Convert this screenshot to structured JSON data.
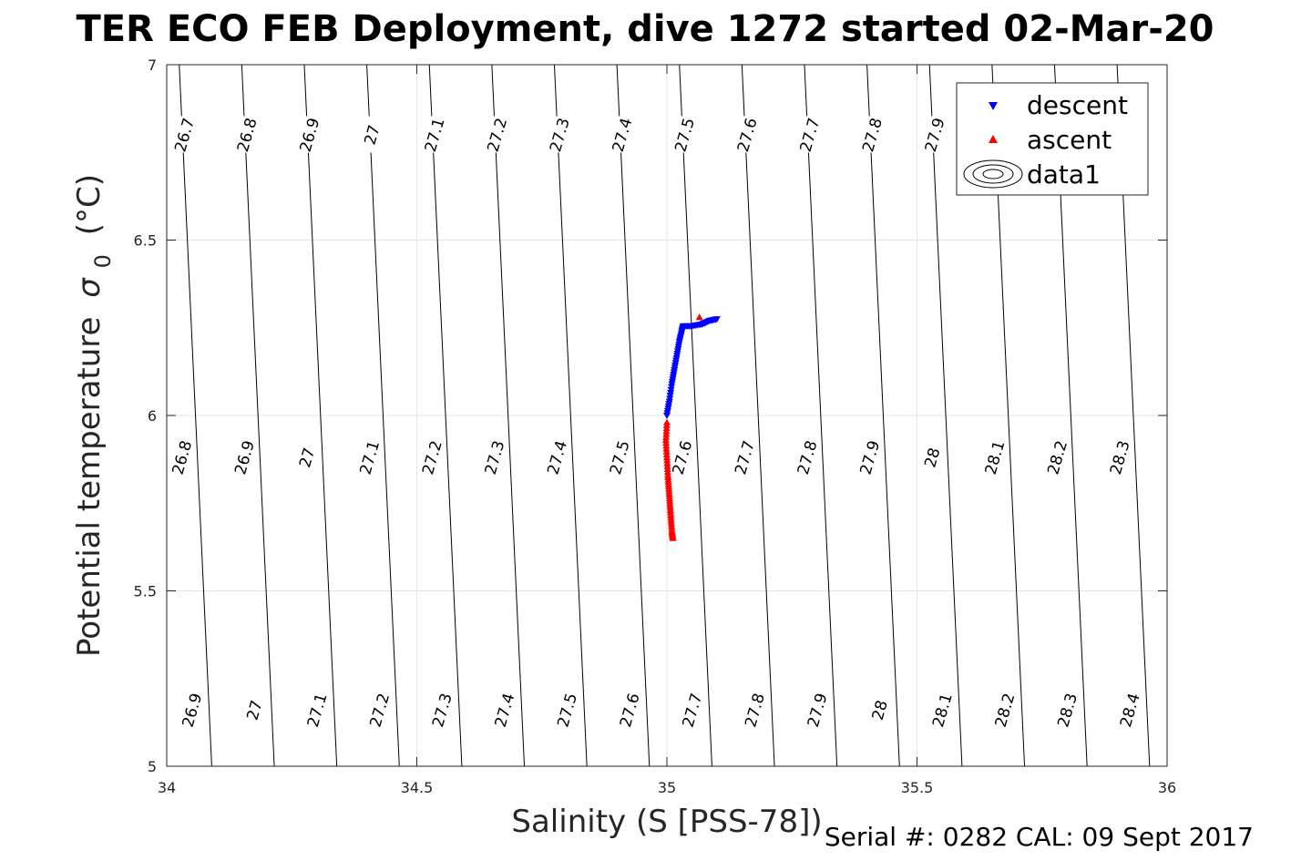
{
  "chart_data": {
    "type": "scatter",
    "title": "TER ECO FEB Deployment, dive 1272 started 02-Mar-20",
    "xlabel": "Salinity (S [PSS-78])",
    "ylabel": "Potential temperature",
    "ylabel_symbol": "σ",
    "ylabel_subscript": "0",
    "ylabel_units": "(°C)",
    "xlim": [
      34,
      36
    ],
    "ylim": [
      5,
      7
    ],
    "xticks": [
      "34",
      "34.5",
      "35",
      "35.5",
      "36"
    ],
    "xtick_values": [
      34,
      34.5,
      35,
      35.5,
      36
    ],
    "yticks": [
      "5",
      "5.5",
      "6",
      "6.5",
      "7"
    ],
    "ytick_values": [
      5,
      5.5,
      6,
      6.5,
      7
    ],
    "grid": true,
    "legend_position": "top-right",
    "legend": [
      "descent",
      "ascent",
      "data1"
    ],
    "series": [
      {
        "name": "descent",
        "marker": "triangle-down",
        "color": "#0000ff",
        "points": [
          [
            35.0,
            6.0
          ],
          [
            35.005,
            6.04
          ],
          [
            35.01,
            6.09
          ],
          [
            35.015,
            6.13
          ],
          [
            35.02,
            6.17
          ],
          [
            35.025,
            6.21
          ],
          [
            35.03,
            6.24
          ],
          [
            35.033,
            6.255
          ],
          [
            35.05,
            6.255
          ],
          [
            35.07,
            6.26
          ],
          [
            35.085,
            6.27
          ],
          [
            35.1,
            6.275
          ]
        ]
      },
      {
        "name": "ascent",
        "marker": "triangle-up",
        "color": "#ff0000",
        "points": [
          [
            35.0,
            5.98
          ],
          [
            34.998,
            5.93
          ],
          [
            35.0,
            5.88
          ],
          [
            35.002,
            5.83
          ],
          [
            35.004,
            5.79
          ],
          [
            35.006,
            5.75
          ],
          [
            35.008,
            5.71
          ],
          [
            35.01,
            5.67
          ],
          [
            35.012,
            5.65
          ],
          [
            35.065,
            6.28
          ]
        ]
      }
    ],
    "contours": {
      "name": "data1",
      "color": "#000000",
      "line_params": [
        [
          26.7,
          34.09,
          34.025
        ],
        [
          26.8,
          34.215,
          34.15
        ],
        [
          26.9,
          34.34,
          34.275
        ],
        [
          27,
          34.465,
          34.4
        ],
        [
          27.1,
          34.59,
          34.525
        ],
        [
          27.2,
          34.715,
          34.65
        ],
        [
          27.3,
          34.84,
          34.775
        ],
        [
          27.4,
          34.965,
          34.9
        ],
        [
          27.5,
          35.09,
          35.025
        ],
        [
          27.6,
          35.215,
          35.15
        ],
        [
          27.7,
          35.34,
          35.275
        ],
        [
          27.8,
          35.465,
          35.4
        ],
        [
          27.9,
          35.59,
          35.525
        ],
        [
          28,
          35.715,
          35.65
        ],
        [
          28.1,
          35.84,
          35.775
        ],
        [
          28.2,
          35.965,
          35.9
        ],
        [
          28.3,
          36.09,
          36.025
        ],
        [
          28.4,
          36.215,
          36.15
        ],
        [
          28.5,
          36.34,
          36.275
        ],
        [
          26.6,
          33.965,
          33.9
        ],
        [
          26.5,
          33.84,
          33.775
        ]
      ],
      "labels": [
        {
          "text": "26.7",
          "s": 34.035,
          "t": 6.8
        },
        {
          "text": "26.8",
          "s": 34.16,
          "t": 6.8
        },
        {
          "text": "26.9",
          "s": 34.285,
          "t": 6.8
        },
        {
          "text": "27",
          "s": 34.41,
          "t": 6.8
        },
        {
          "text": "27.1",
          "s": 34.535,
          "t": 6.8
        },
        {
          "text": "27.2",
          "s": 34.66,
          "t": 6.8
        },
        {
          "text": "27.3",
          "s": 34.785,
          "t": 6.8
        },
        {
          "text": "27.4",
          "s": 34.91,
          "t": 6.8
        },
        {
          "text": "27.5",
          "s": 35.035,
          "t": 6.8
        },
        {
          "text": "27.6",
          "s": 35.16,
          "t": 6.8
        },
        {
          "text": "27.7",
          "s": 35.285,
          "t": 6.8
        },
        {
          "text": "27.8",
          "s": 35.41,
          "t": 6.8
        },
        {
          "text": "27.9",
          "s": 35.535,
          "t": 6.8
        },
        {
          "text": "26.8",
          "s": 34.03,
          "t": 5.88
        },
        {
          "text": "26.9",
          "s": 34.155,
          "t": 5.88
        },
        {
          "text": "27",
          "s": 34.28,
          "t": 5.88
        },
        {
          "text": "27.1",
          "s": 34.405,
          "t": 5.88
        },
        {
          "text": "27.2",
          "s": 34.53,
          "t": 5.88
        },
        {
          "text": "27.3",
          "s": 34.655,
          "t": 5.88
        },
        {
          "text": "27.4",
          "s": 34.78,
          "t": 5.88
        },
        {
          "text": "27.5",
          "s": 34.905,
          "t": 5.88
        },
        {
          "text": "27.6",
          "s": 35.03,
          "t": 5.88
        },
        {
          "text": "27.7",
          "s": 35.155,
          "t": 5.88
        },
        {
          "text": "27.8",
          "s": 35.28,
          "t": 5.88
        },
        {
          "text": "27.9",
          "s": 35.405,
          "t": 5.88
        },
        {
          "text": "28",
          "s": 35.53,
          "t": 5.88
        },
        {
          "text": "28.1",
          "s": 35.655,
          "t": 5.88
        },
        {
          "text": "28.2",
          "s": 35.78,
          "t": 5.88
        },
        {
          "text": "28.3",
          "s": 35.905,
          "t": 5.88
        },
        {
          "text": "26.9",
          "s": 34.05,
          "t": 5.16
        },
        {
          "text": "27",
          "s": 34.175,
          "t": 5.16
        },
        {
          "text": "27.1",
          "s": 34.3,
          "t": 5.16
        },
        {
          "text": "27.2",
          "s": 34.425,
          "t": 5.16
        },
        {
          "text": "27.3",
          "s": 34.55,
          "t": 5.16
        },
        {
          "text": "27.4",
          "s": 34.675,
          "t": 5.16
        },
        {
          "text": "27.5",
          "s": 34.8,
          "t": 5.16
        },
        {
          "text": "27.6",
          "s": 34.925,
          "t": 5.16
        },
        {
          "text": "27.7",
          "s": 35.05,
          "t": 5.16
        },
        {
          "text": "27.8",
          "s": 35.175,
          "t": 5.16
        },
        {
          "text": "27.9",
          "s": 35.3,
          "t": 5.16
        },
        {
          "text": "28",
          "s": 35.425,
          "t": 5.16
        },
        {
          "text": "28.1",
          "s": 35.55,
          "t": 5.16
        },
        {
          "text": "28.2",
          "s": 35.675,
          "t": 5.16
        },
        {
          "text": "28.3",
          "s": 35.8,
          "t": 5.16
        },
        {
          "text": "28.4",
          "s": 35.925,
          "t": 5.16
        }
      ]
    }
  },
  "footer": {
    "serial_text": "Serial #: 0282  CAL: 09 Sept 2017"
  },
  "colors": {
    "descent": "#0000ff",
    "ascent": "#ff0000",
    "grid": "#e5e5e5",
    "axis": "#262626"
  }
}
